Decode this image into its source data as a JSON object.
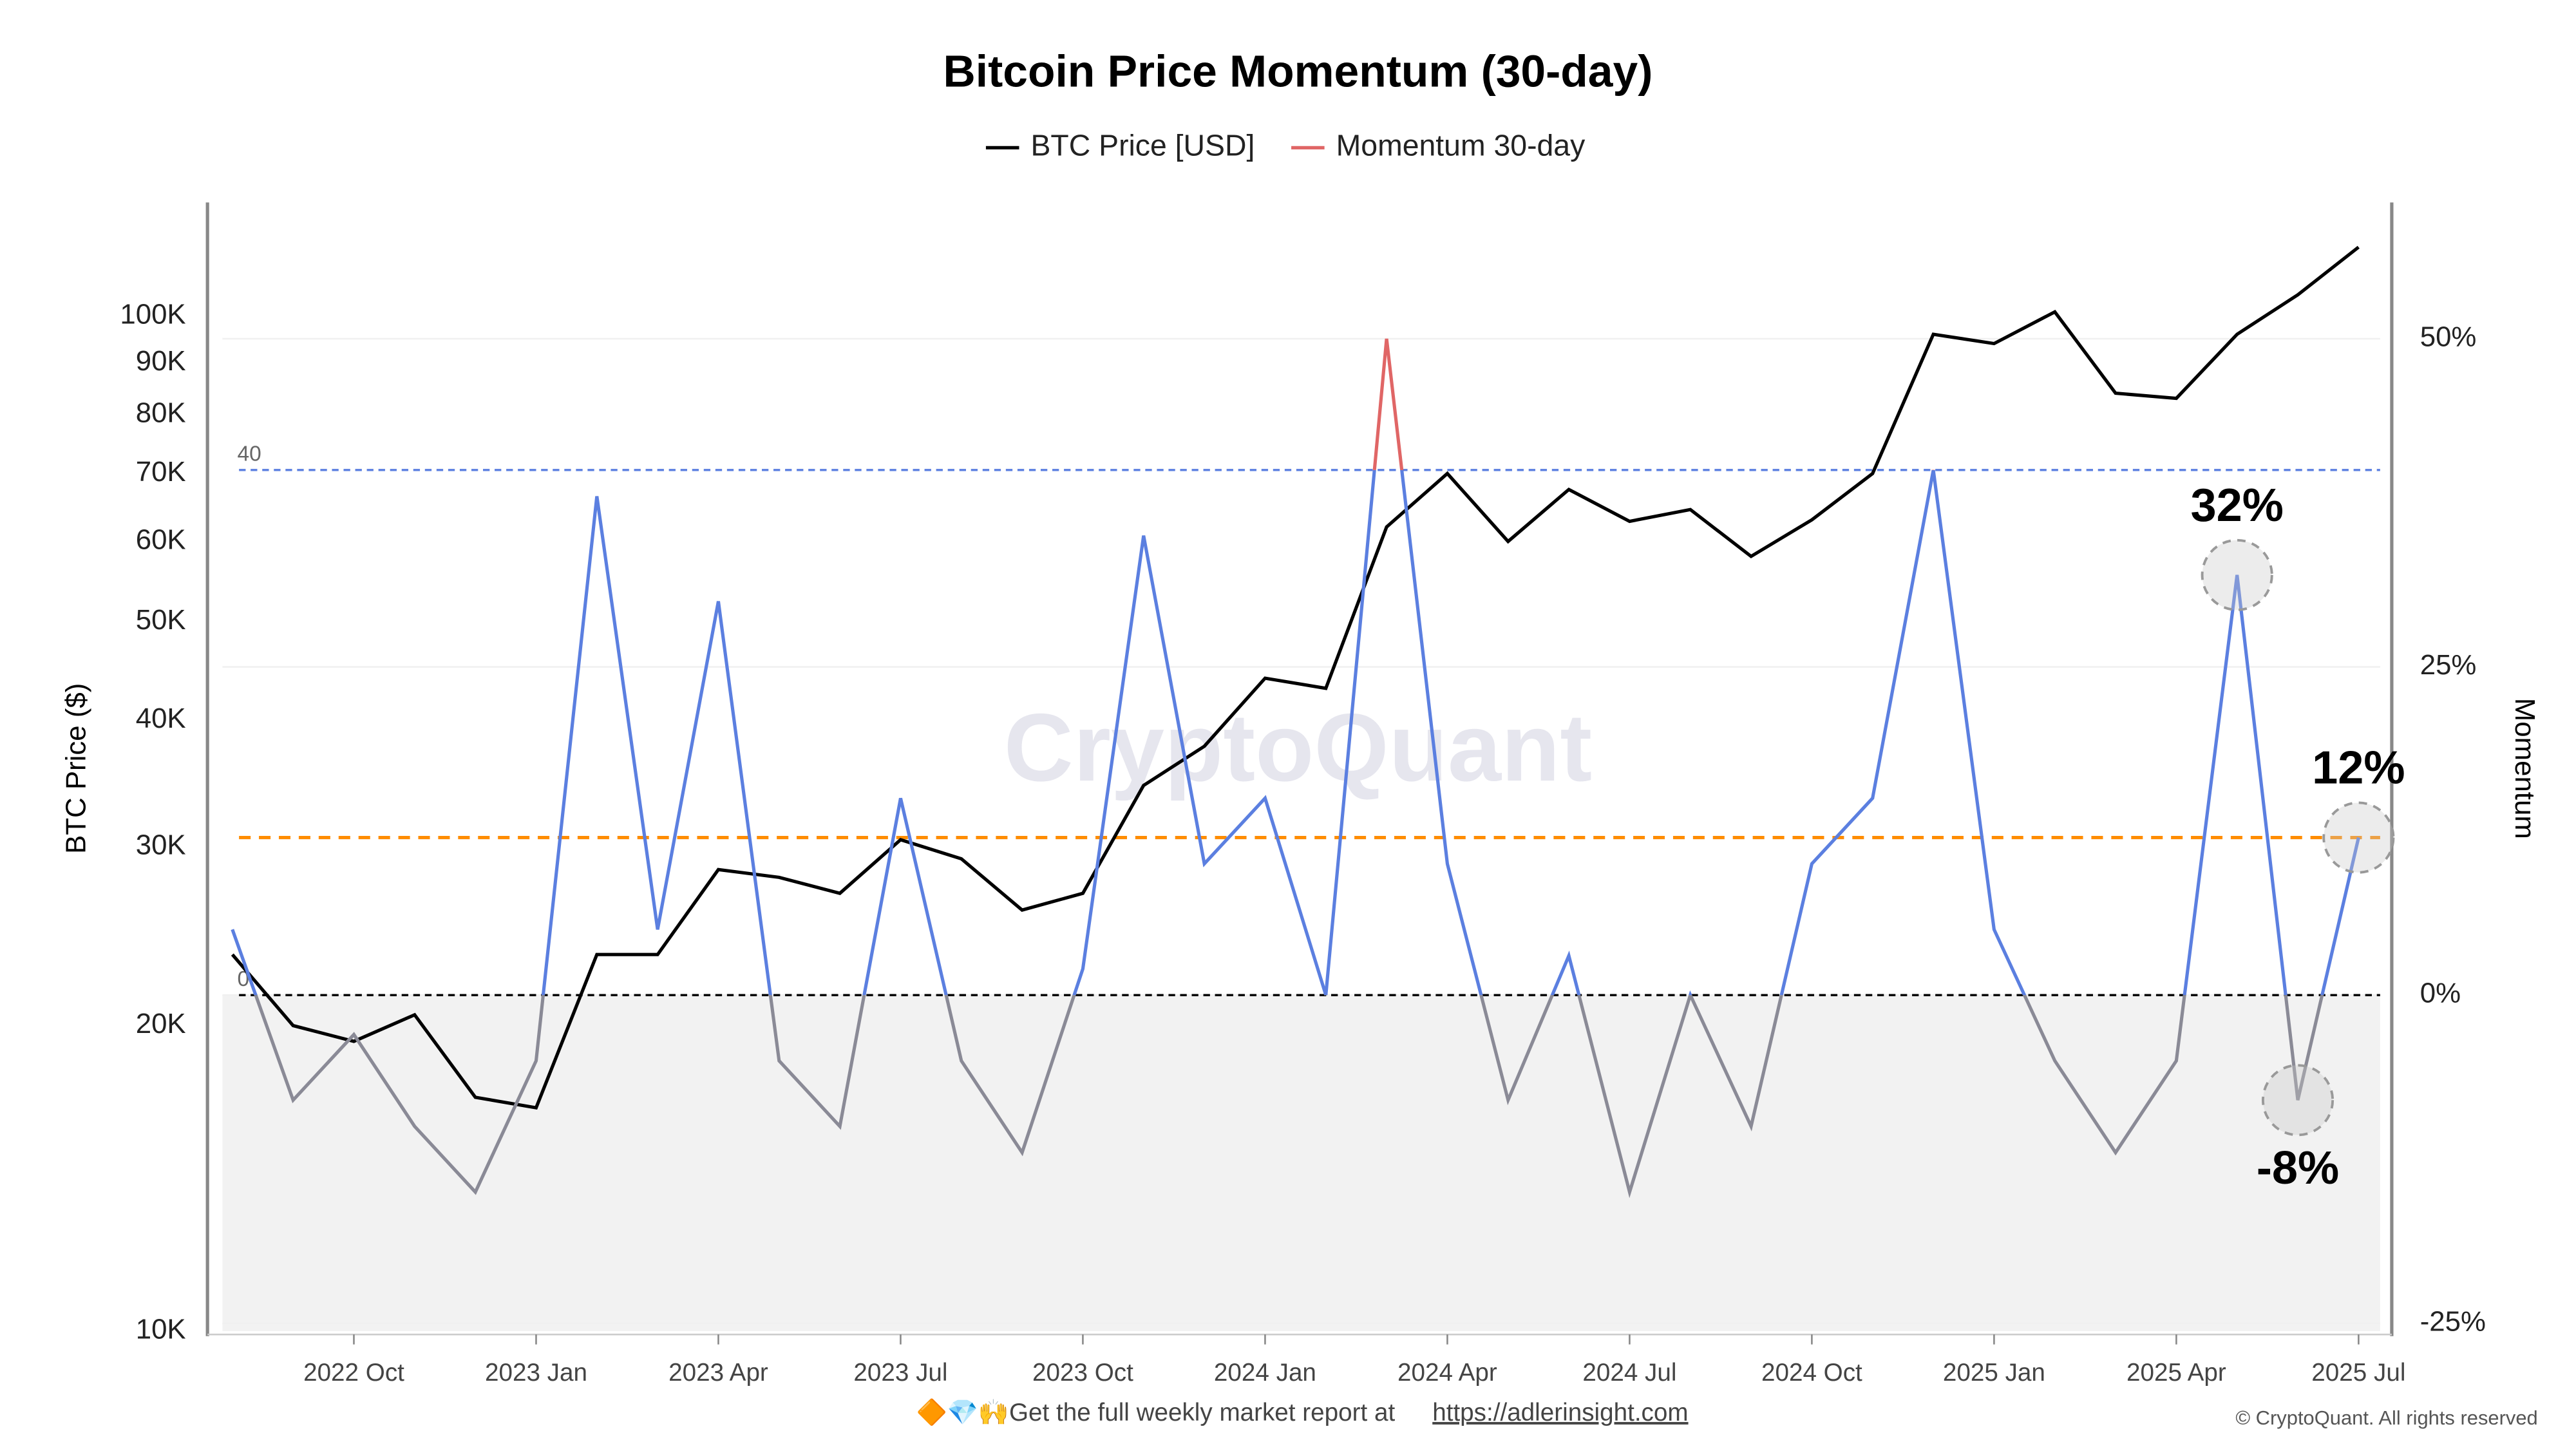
{
  "chart_data": {
    "type": "line",
    "title": "Bitcoin Price Momentum (30-day)",
    "watermark": "CryptoQuant",
    "ylabel": "BTC Price ($)",
    "y2label": "Momentum",
    "x": [
      "2022 Aug",
      "2022 Sep",
      "2022 Oct",
      "2022 Nov",
      "2022 Dec",
      "2023 Jan",
      "2023 Feb",
      "2023 Mar",
      "2023 Apr",
      "2023 May",
      "2023 Jun",
      "2023 Jul",
      "2023 Aug",
      "2023 Sep",
      "2023 Oct",
      "2023 Nov",
      "2023 Dec",
      "2024 Jan",
      "2024 Feb",
      "2024 Mar",
      "2024 Apr",
      "2024 May",
      "2024 Jun",
      "2024 Jul",
      "2024 Aug",
      "2024 Sep",
      "2024 Oct",
      "2024 Nov",
      "2024 Dec",
      "2025 Jan",
      "2025 Feb",
      "2025 Mar",
      "2025 Apr",
      "2025 May",
      "2025 Jun",
      "2025 Jul"
    ],
    "xticks": [
      "2022 Oct",
      "2023 Jan",
      "2023 Apr",
      "2023 Jul",
      "2023 Oct",
      "2024 Jan",
      "2024 Apr",
      "2024 Jul",
      "2024 Oct",
      "2025 Jan",
      "2025 Apr",
      "2025 Jul"
    ],
    "log_y": true,
    "ylim": [
      10000,
      128000
    ],
    "yticks": [
      {
        "value": 10000,
        "label": "10K"
      },
      {
        "value": 20000,
        "label": "20K"
      },
      {
        "value": 30000,
        "label": "30K"
      },
      {
        "value": 40000,
        "label": "40K"
      },
      {
        "value": 50000,
        "label": "50K"
      },
      {
        "value": 60000,
        "label": "60K"
      },
      {
        "value": 70000,
        "label": "70K"
      },
      {
        "value": 80000,
        "label": "80K"
      },
      {
        "value": 90000,
        "label": "90K"
      },
      {
        "value": 100000,
        "label": "100K"
      }
    ],
    "y2lim": [
      -25.6,
      60
    ],
    "y2ticks": [
      {
        "value": -25,
        "label": "-25%"
      },
      {
        "value": 0,
        "label": "0%"
      },
      {
        "value": 25,
        "label": "25%"
      },
      {
        "value": 50,
        "label": "50%"
      }
    ],
    "grid": true,
    "series": [
      {
        "name": "BTC Price [USD]",
        "color": "#000000",
        "values": [
          23500,
          20000,
          19300,
          20500,
          17000,
          16600,
          23500,
          23500,
          28500,
          28000,
          27000,
          30500,
          29200,
          26000,
          27000,
          34500,
          37700,
          44000,
          43000,
          62000,
          70000,
          60000,
          67500,
          62800,
          64500,
          58000,
          63000,
          70000,
          96000,
          94000,
          101000,
          84000,
          83000,
          96000,
          105000,
          117000
        ]
      },
      {
        "name": "Momentum 30-day",
        "color": "#e06666",
        "axis": "y2",
        "values": [
          5,
          -8,
          -3,
          -10,
          -15,
          -5,
          38,
          5,
          30,
          -5,
          -10,
          15,
          -5,
          -12,
          2,
          35,
          10,
          15,
          0,
          50,
          10,
          -8,
          3,
          -15,
          0,
          -10,
          10,
          15,
          40,
          5,
          -5,
          -12,
          -5,
          32,
          -8,
          12
        ]
      }
    ],
    "upper_line": 40,
    "zero_line": 0,
    "signal_line": 12,
    "momentum_colors": {
      "positive": "#5b7fe0",
      "negative": "#8a8a96",
      "upper_line": "#5b7fe0",
      "zero_line": "#000000",
      "signal_line": "#ff8c00",
      "negative_area": "#f2f2f2"
    },
    "annotations": [
      {
        "text": "32%",
        "x": "2025 May",
        "value": 32
      },
      {
        "text": "-8%",
        "x": "2025 Jun",
        "value": -8
      },
      {
        "text": "12%",
        "x": "2025 Jul",
        "value": 12
      }
    ],
    "footer": {
      "icons": "🔶💎🙌",
      "text": "Get the full weekly market report at",
      "link": "https://adlerinsight.com"
    },
    "copyright": "© CryptoQuant. All rights reserved"
  }
}
